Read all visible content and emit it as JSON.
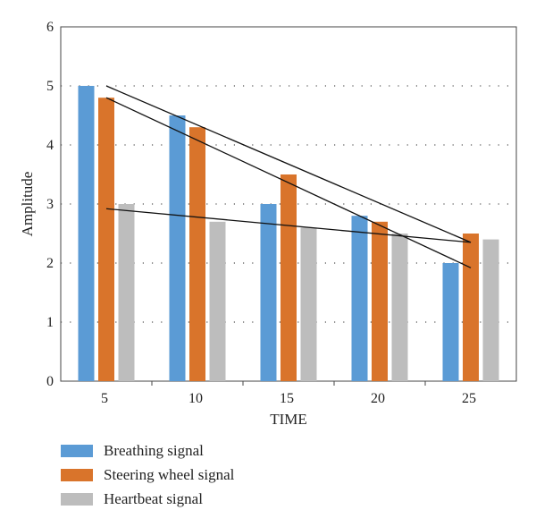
{
  "chart_data": {
    "type": "bar",
    "categories": [
      "5",
      "10",
      "15",
      "20",
      "25"
    ],
    "series": [
      {
        "name": "Breathing signal",
        "color": "#5b9bd5",
        "values": [
          5.0,
          4.5,
          3.0,
          2.8,
          2.0
        ]
      },
      {
        "name": "Steering wheel signal",
        "color": "#d9742b",
        "values": [
          4.8,
          4.3,
          3.5,
          2.7,
          2.5
        ]
      },
      {
        "name": "Heartbeat signal",
        "color": "#bdbdbd",
        "values": [
          3.0,
          2.7,
          2.6,
          2.5,
          2.4
        ]
      }
    ],
    "trendlines": [
      {
        "start": [
          5,
          5.0
        ],
        "end": [
          25,
          2.35
        ]
      },
      {
        "start": [
          5,
          4.8
        ],
        "end": [
          25,
          1.92
        ]
      },
      {
        "start": [
          5,
          2.92
        ],
        "end": [
          25,
          2.35
        ]
      }
    ],
    "xlabel": "TIME",
    "ylabel": "Amplitude",
    "ylim": [
      0,
      6
    ],
    "yticks": [
      0,
      1,
      2,
      3,
      4,
      5,
      6
    ],
    "grid": "dotted horizontal",
    "legend_position": "bottom-left"
  }
}
